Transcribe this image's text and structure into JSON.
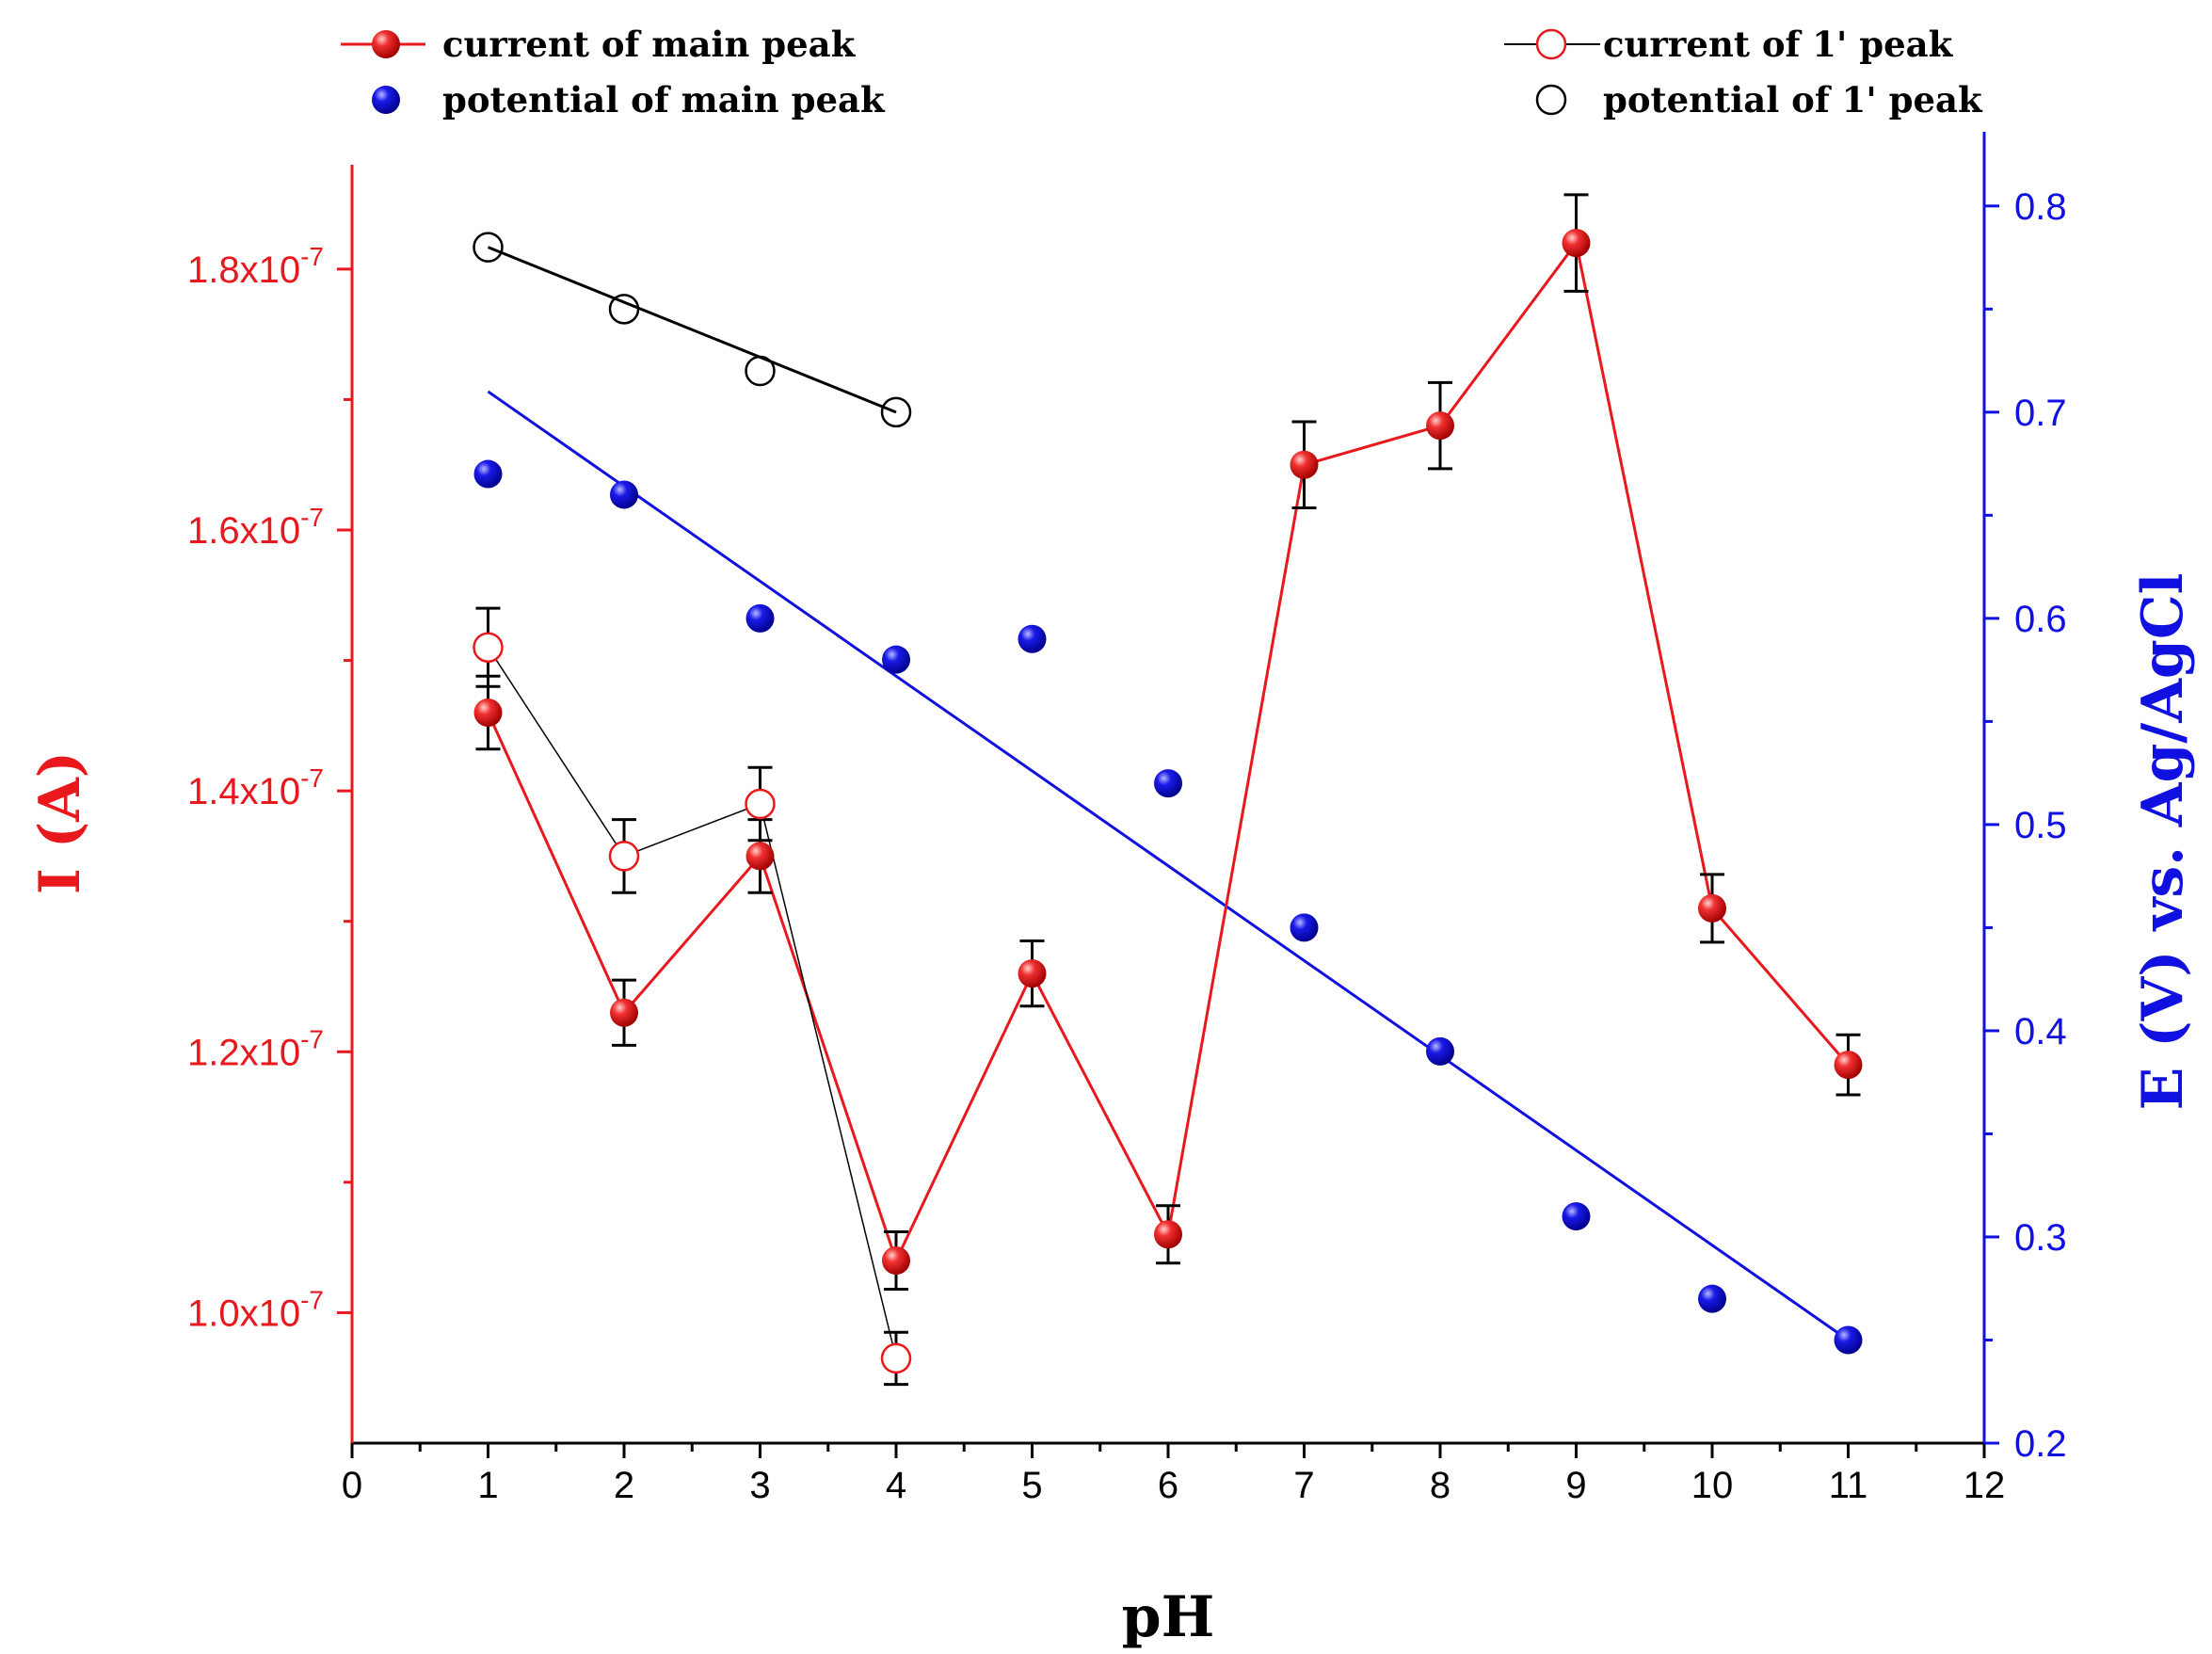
{
  "chart_data": {
    "type": "scatter",
    "xlabel": "pH",
    "ylabel_left": "I (A)",
    "ylabel_right": "E (V) vs. Ag/AgCl",
    "xlim": [
      0,
      12
    ],
    "ylim_left": [
      9e-08,
      1.88e-07
    ],
    "ylim_right": [
      0.2,
      0.82
    ],
    "x_ticks": [
      "0",
      "1",
      "2",
      "3",
      "4",
      "5",
      "6",
      "7",
      "8",
      "9",
      "10",
      "11",
      "12"
    ],
    "y_left_ticks": [
      {
        "value": 1e-07,
        "mantissa": "1.0x10",
        "exp": "-7"
      },
      {
        "value": 1.2e-07,
        "mantissa": "1.2x10",
        "exp": "-7"
      },
      {
        "value": 1.4e-07,
        "mantissa": "1.4x10",
        "exp": "-7"
      },
      {
        "value": 1.6e-07,
        "mantissa": "1.6x10",
        "exp": "-7"
      },
      {
        "value": 1.8e-07,
        "mantissa": "1.8x10",
        "exp": "-7"
      }
    ],
    "y_right_ticks": [
      "0.2",
      "0.3",
      "0.4",
      "0.5",
      "0.6",
      "0.7",
      "0.8"
    ],
    "colors": {
      "left_axis": "#e8181c",
      "right_axis": "#1010e0",
      "main_current": "#e8181c",
      "main_potential": "#1212c8",
      "axis_black": "#000000"
    },
    "legend": {
      "main_current": "current of main peak",
      "first_current": "current of 1' peak",
      "main_potential": "potential of main peak",
      "first_potential": "potential of 1' peak"
    },
    "series": [
      {
        "name": "current of main peak",
        "axis": "left",
        "style": "filled-red-line",
        "x": [
          1,
          2,
          3,
          4,
          5,
          6,
          7,
          8,
          9,
          10,
          11
        ],
        "y": [
          1.46e-07,
          1.23e-07,
          1.35e-07,
          1.04e-07,
          1.26e-07,
          1.06e-07,
          1.65e-07,
          1.68e-07,
          1.82e-07,
          1.31e-07,
          1.19e-07
        ],
        "err": [
          2.8e-09,
          2.5e-09,
          2.8e-09,
          2.2e-09,
          2.5e-09,
          2.2e-09,
          3.3e-09,
          3.3e-09,
          3.7e-09,
          2.6e-09,
          2.3e-09
        ]
      },
      {
        "name": "current of 1' peak",
        "axis": "left",
        "style": "open-red-line",
        "x": [
          1,
          2,
          3,
          4
        ],
        "y": [
          1.51e-07,
          1.35e-07,
          1.39e-07,
          9.65e-08
        ],
        "err": [
          3e-09,
          2.8e-09,
          2.8e-09,
          2e-09
        ]
      },
      {
        "name": "potential of main peak",
        "axis": "right",
        "style": "filled-blue",
        "x": [
          1,
          2,
          3,
          4,
          5,
          6,
          7,
          8,
          9,
          10,
          11
        ],
        "y": [
          0.67,
          0.66,
          0.6,
          0.58,
          0.59,
          0.52,
          0.45,
          0.39,
          0.31,
          0.27,
          0.25
        ]
      },
      {
        "name": "potential of 1' peak",
        "axis": "right",
        "style": "open-black",
        "x": [
          1,
          2,
          3,
          4
        ],
        "y": [
          0.78,
          0.75,
          0.72,
          0.7
        ]
      }
    ],
    "fits": [
      {
        "name": "main peak potential linear fit",
        "axis": "right",
        "color": "#1010e0",
        "x": [
          1,
          11
        ],
        "y": [
          0.71,
          0.25
        ]
      },
      {
        "name": "1' peak potential linear fit",
        "axis": "right",
        "color": "#000000",
        "x": [
          1,
          4
        ],
        "y": [
          0.78,
          0.7
        ]
      }
    ]
  }
}
